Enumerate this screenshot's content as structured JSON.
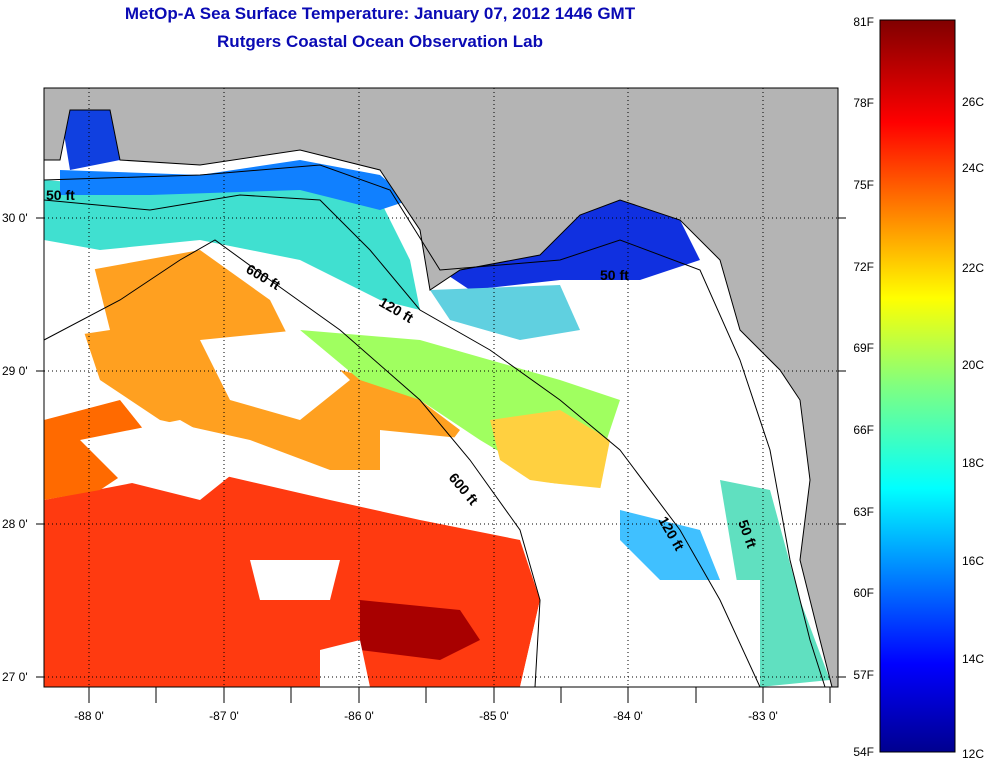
{
  "header": {
    "title": "MetOp-A Sea Surface Temperature:  January 07, 2012 1446 GMT",
    "subtitle": "Rutgers Coastal Ocean Observation Lab"
  },
  "map": {
    "lat_labels": [
      "30 0'",
      "29 0'",
      "28 0'",
      "27 0'"
    ],
    "lon_labels": [
      "-88 0'",
      "-87 0'",
      "-86 0'",
      "-85 0'",
      "-84 0'",
      "-83 0'"
    ],
    "contour_labels": [
      "50 ft",
      "600 ft",
      "120 ft",
      "50 ft",
      "600 ft",
      "120 ft",
      "50 ft"
    ],
    "colors": {
      "land": "#b4b4b4",
      "cloud": "#ffffff",
      "contour": "#000000"
    }
  },
  "colorbar": {
    "fahrenheit_labels": [
      "81F",
      "78F",
      "75F",
      "72F",
      "69F",
      "66F",
      "63F",
      "60F",
      "57F",
      "54F"
    ],
    "celsius_labels": [
      "26C",
      "24C",
      "22C",
      "20C",
      "18C",
      "16C",
      "14C",
      "12C"
    ],
    "range_f": [
      54,
      81
    ]
  }
}
